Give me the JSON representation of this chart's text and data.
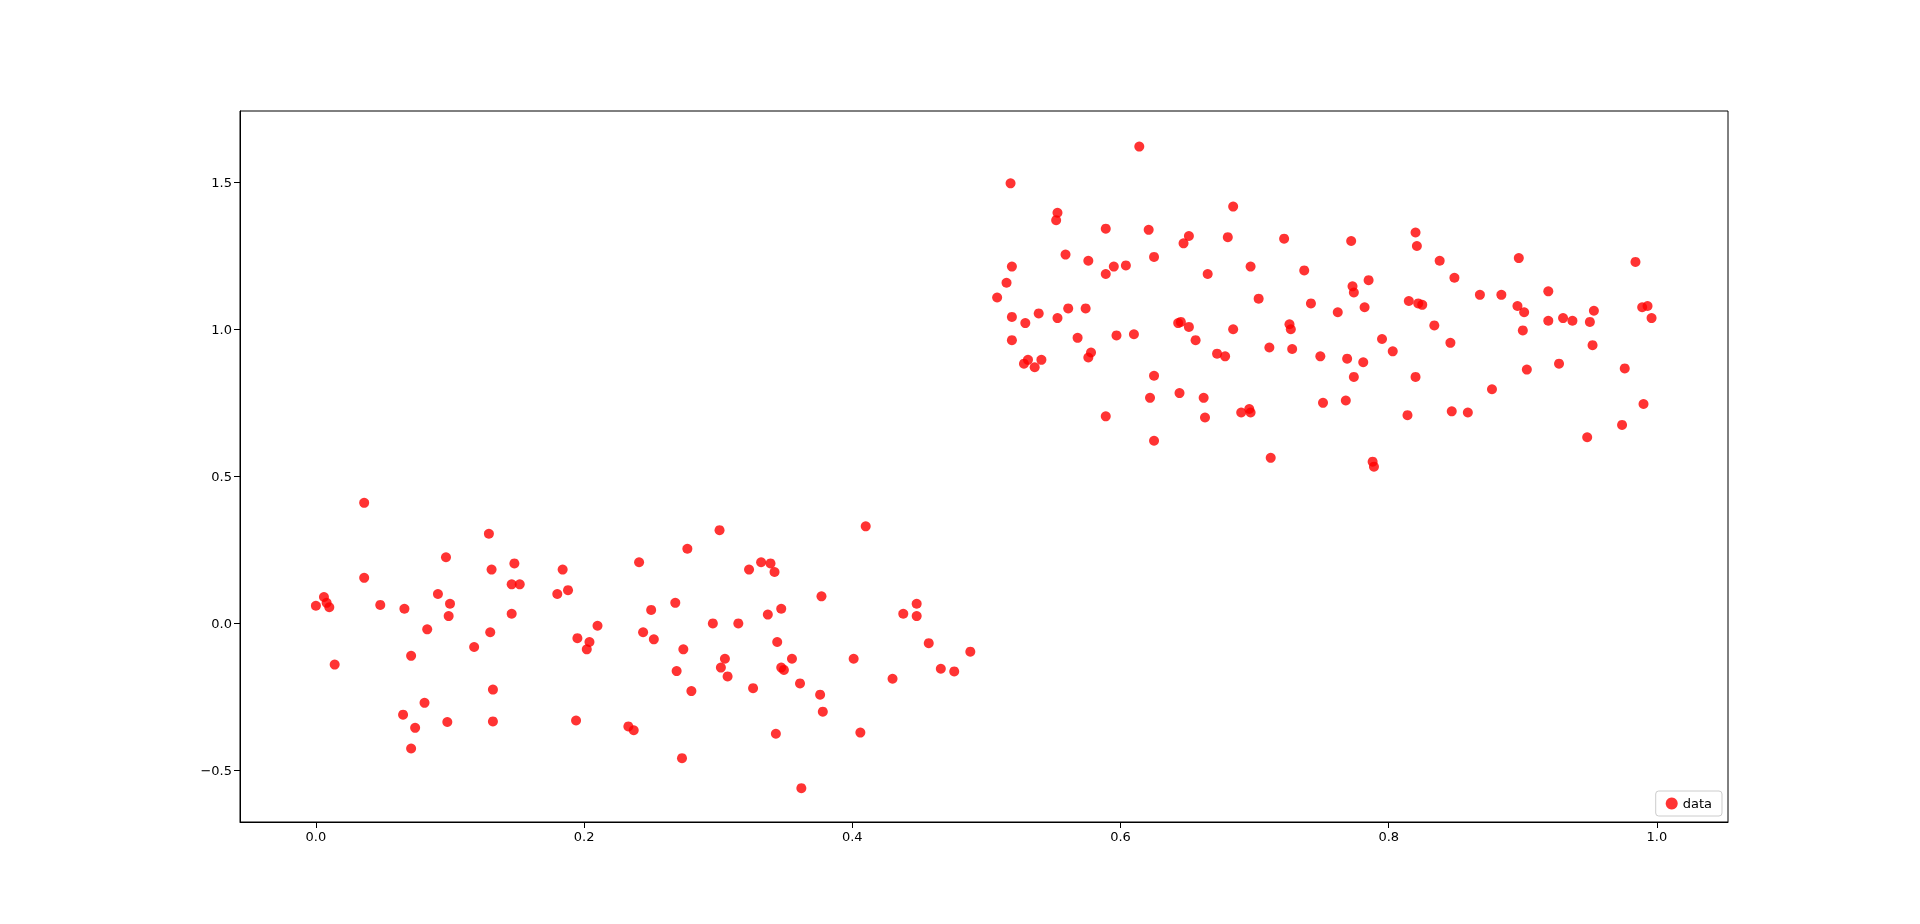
{
  "chart_data": {
    "type": "scatter",
    "marker": "circle",
    "grid": false,
    "legend": "bottom right",
    "xlim": [
      -0.0566,
      1.053
    ],
    "ylim": [
      -0.675,
      1.742
    ],
    "xticks": [
      {
        "value": 0,
        "label": "0.0"
      },
      {
        "value": 0.2,
        "label": "0.2"
      },
      {
        "value": 0.4,
        "label": "0.4"
      },
      {
        "value": 0.6,
        "label": "0.6"
      },
      {
        "value": 0.8,
        "label": "0.8"
      },
      {
        "value": 1,
        "label": "1.0"
      }
    ],
    "yticks": [
      {
        "value": -0.5,
        "label": "−0.5"
      },
      {
        "value": 0,
        "label": "0.0"
      },
      {
        "value": 0.5,
        "label": "0.5"
      },
      {
        "value": 1,
        "label": "1.0"
      },
      {
        "value": 1.5,
        "label": "1.5"
      }
    ],
    "series": [
      {
        "name": "data",
        "color": "#ff0000",
        "x": [
          0.0,
          0.006,
          0.008,
          0.01,
          0.014,
          0.036,
          0.036,
          0.048,
          0.065,
          0.066,
          0.071,
          0.071,
          0.074,
          0.081,
          0.083,
          0.091,
          0.097,
          0.098,
          0.099,
          0.1,
          0.118,
          0.129,
          0.13,
          0.131,
          0.132,
          0.132,
          0.146,
          0.146,
          0.148,
          0.152,
          0.18,
          0.184,
          0.188,
          0.194,
          0.195,
          0.202,
          0.204,
          0.21,
          0.233,
          0.237,
          0.241,
          0.244,
          0.25,
          0.252,
          0.268,
          0.269,
          0.273,
          0.274,
          0.277,
          0.28,
          0.296,
          0.301,
          0.302,
          0.305,
          0.307,
          0.315,
          0.323,
          0.326,
          0.332,
          0.337,
          0.339,
          0.342,
          0.343,
          0.344,
          0.347,
          0.347,
          0.349,
          0.355,
          0.361,
          0.362,
          0.377,
          0.376,
          0.378,
          0.401,
          0.406,
          0.41,
          0.43,
          0.438,
          0.448,
          0.448,
          0.457,
          0.466,
          0.476,
          0.488,
          0.508,
          0.518,
          0.515,
          0.519,
          0.519,
          0.519,
          0.528,
          0.529,
          0.531,
          0.536,
          0.539,
          0.541,
          0.552,
          0.553,
          0.553,
          0.559,
          0.561,
          0.568,
          0.574,
          0.576,
          0.576,
          0.578,
          0.589,
          0.589,
          0.589,
          0.595,
          0.597,
          0.604,
          0.61,
          0.614,
          0.621,
          0.622,
          0.625,
          0.625,
          0.625,
          0.643,
          0.644,
          0.645,
          0.647,
          0.651,
          0.651,
          0.656,
          0.662,
          0.663,
          0.665,
          0.672,
          0.678,
          0.68,
          0.684,
          0.684,
          0.69,
          0.696,
          0.697,
          0.697,
          0.703,
          0.711,
          0.712,
          0.722,
          0.726,
          0.727,
          0.728,
          0.737,
          0.742,
          0.749,
          0.751,
          0.762,
          0.768,
          0.769,
          0.772,
          0.773,
          0.774,
          0.774,
          0.781,
          0.782,
          0.785,
          0.788,
          0.789,
          0.795,
          0.803,
          0.814,
          0.815,
          0.82,
          0.82,
          0.821,
          0.822,
          0.825,
          0.834,
          0.838,
          0.846,
          0.847,
          0.849,
          0.859,
          0.868,
          0.877,
          0.884,
          0.896,
          0.897,
          0.9,
          0.901,
          0.903,
          0.919,
          0.919,
          0.927,
          0.93,
          0.937,
          0.948,
          0.95,
          0.952,
          0.953,
          0.974,
          0.976,
          0.984,
          0.989,
          0.99,
          0.993,
          0.996
        ],
        "values": [
          0.06,
          0.09,
          0.07,
          0.055,
          -0.14,
          0.41,
          0.155,
          0.063,
          -0.31,
          0.05,
          -0.11,
          -0.425,
          -0.355,
          -0.27,
          -0.02,
          0.1,
          0.225,
          -0.335,
          0.025,
          0.067,
          -0.08,
          0.305,
          -0.03,
          0.183,
          -0.225,
          -0.333,
          0.033,
          0.133,
          0.204,
          0.133,
          0.1,
          0.183,
          0.113,
          -0.33,
          -0.05,
          -0.088,
          -0.063,
          -0.008,
          -0.35,
          -0.363,
          0.208,
          -0.03,
          0.046,
          -0.054,
          0.07,
          -0.162,
          -0.458,
          -0.088,
          0.254,
          -0.23,
          0.0,
          0.317,
          -0.15,
          -0.12,
          -0.18,
          0.0,
          0.183,
          -0.22,
          0.208,
          0.03,
          0.204,
          0.175,
          -0.375,
          -0.063,
          0.05,
          -0.15,
          -0.158,
          -0.12,
          -0.204,
          -0.56,
          0.092,
          -0.242,
          -0.3,
          -0.12,
          -0.371,
          0.33,
          -0.188,
          0.033,
          0.067,
          0.025,
          -0.067,
          -0.154,
          -0.163,
          -0.096,
          1.108,
          1.496,
          1.158,
          1.213,
          1.042,
          0.963,
          0.883,
          1.021,
          0.896,
          0.871,
          1.054,
          0.896,
          1.371,
          1.396,
          1.038,
          1.254,
          1.071,
          0.971,
          1.071,
          1.233,
          0.904,
          0.921,
          1.342,
          1.188,
          0.704,
          1.213,
          0.979,
          1.217,
          0.983,
          1.621,
          1.338,
          0.767,
          0.621,
          1.246,
          0.842,
          1.021,
          0.783,
          1.025,
          1.292,
          1.317,
          1.008,
          0.963,
          0.767,
          0.7,
          1.188,
          0.917,
          0.908,
          1.313,
          1.417,
          1.0,
          0.717,
          0.729,
          0.717,
          1.213,
          1.104,
          0.938,
          0.563,
          1.308,
          1.017,
          1.0,
          0.933,
          1.2,
          1.088,
          0.908,
          0.75,
          1.058,
          0.758,
          0.9,
          1.3,
          1.146,
          1.125,
          0.838,
          0.888,
          1.075,
          1.167,
          0.55,
          0.533,
          0.967,
          0.925,
          0.708,
          1.096,
          1.329,
          0.838,
          1.283,
          1.088,
          1.083,
          1.013,
          1.233,
          0.954,
          0.721,
          1.175,
          0.717,
          1.117,
          0.796,
          1.117,
          1.079,
          1.242,
          0.996,
          1.058,
          0.863,
          1.129,
          1.029,
          0.883,
          1.038,
          1.029,
          0.633,
          1.025,
          0.946,
          1.063,
          0.675,
          0.867,
          1.229,
          1.075,
          0.746,
          1.079,
          1.038
        ]
      }
    ]
  }
}
